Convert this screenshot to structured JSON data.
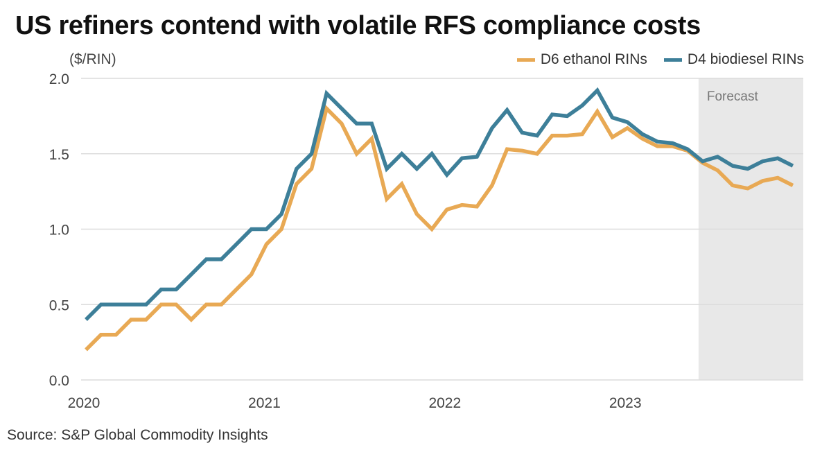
{
  "chart_data": {
    "type": "line",
    "title": "US refiners contend with volatile RFS compliance costs",
    "ylabel": "($/RIN)",
    "xlabel": "",
    "source": "Source: S&P Global Commodity Insights",
    "ylim": [
      0,
      2.0
    ],
    "yticks": [
      "0.0",
      "0.5",
      "1.0",
      "1.5",
      "2.0"
    ],
    "ytick_values": [
      0,
      0.5,
      1.0,
      1.5,
      2.0
    ],
    "xticks": [
      "2020",
      "2021",
      "2022",
      "2023"
    ],
    "x_start": "2020-01",
    "x_end": "2023-12",
    "frequency": "monthly",
    "grid": "horizontal",
    "legend_position": "top-right",
    "forecast": {
      "label": "Forecast",
      "start": "2023-06",
      "end": "2023-12",
      "color": "#e8e8e8"
    },
    "series": [
      {
        "name": "D6 ethanol RINs",
        "color": "#e8a954",
        "values": [
          0.2,
          0.3,
          0.3,
          0.4,
          0.4,
          0.5,
          0.5,
          0.4,
          0.5,
          0.5,
          0.6,
          0.7,
          0.9,
          1.0,
          1.3,
          1.4,
          1.8,
          1.7,
          1.5,
          1.6,
          1.2,
          1.3,
          1.1,
          1.0,
          1.13,
          1.16,
          1.15,
          1.29,
          1.53,
          1.52,
          1.5,
          1.62,
          1.62,
          1.63,
          1.78,
          1.61,
          1.67,
          1.6,
          1.55,
          1.55,
          1.52,
          1.44,
          1.39,
          1.29,
          1.27,
          1.32,
          1.34,
          1.29
        ]
      },
      {
        "name": "D4 biodiesel RINs",
        "color": "#3d7f99",
        "values": [
          0.4,
          0.5,
          0.5,
          0.5,
          0.5,
          0.6,
          0.6,
          0.7,
          0.8,
          0.8,
          0.9,
          1.0,
          1.0,
          1.1,
          1.4,
          1.5,
          1.9,
          1.8,
          1.7,
          1.7,
          1.4,
          1.5,
          1.4,
          1.5,
          1.36,
          1.47,
          1.48,
          1.67,
          1.79,
          1.64,
          1.62,
          1.76,
          1.75,
          1.82,
          1.92,
          1.74,
          1.71,
          1.63,
          1.58,
          1.57,
          1.53,
          1.45,
          1.48,
          1.42,
          1.4,
          1.45,
          1.47,
          1.42
        ]
      }
    ]
  }
}
